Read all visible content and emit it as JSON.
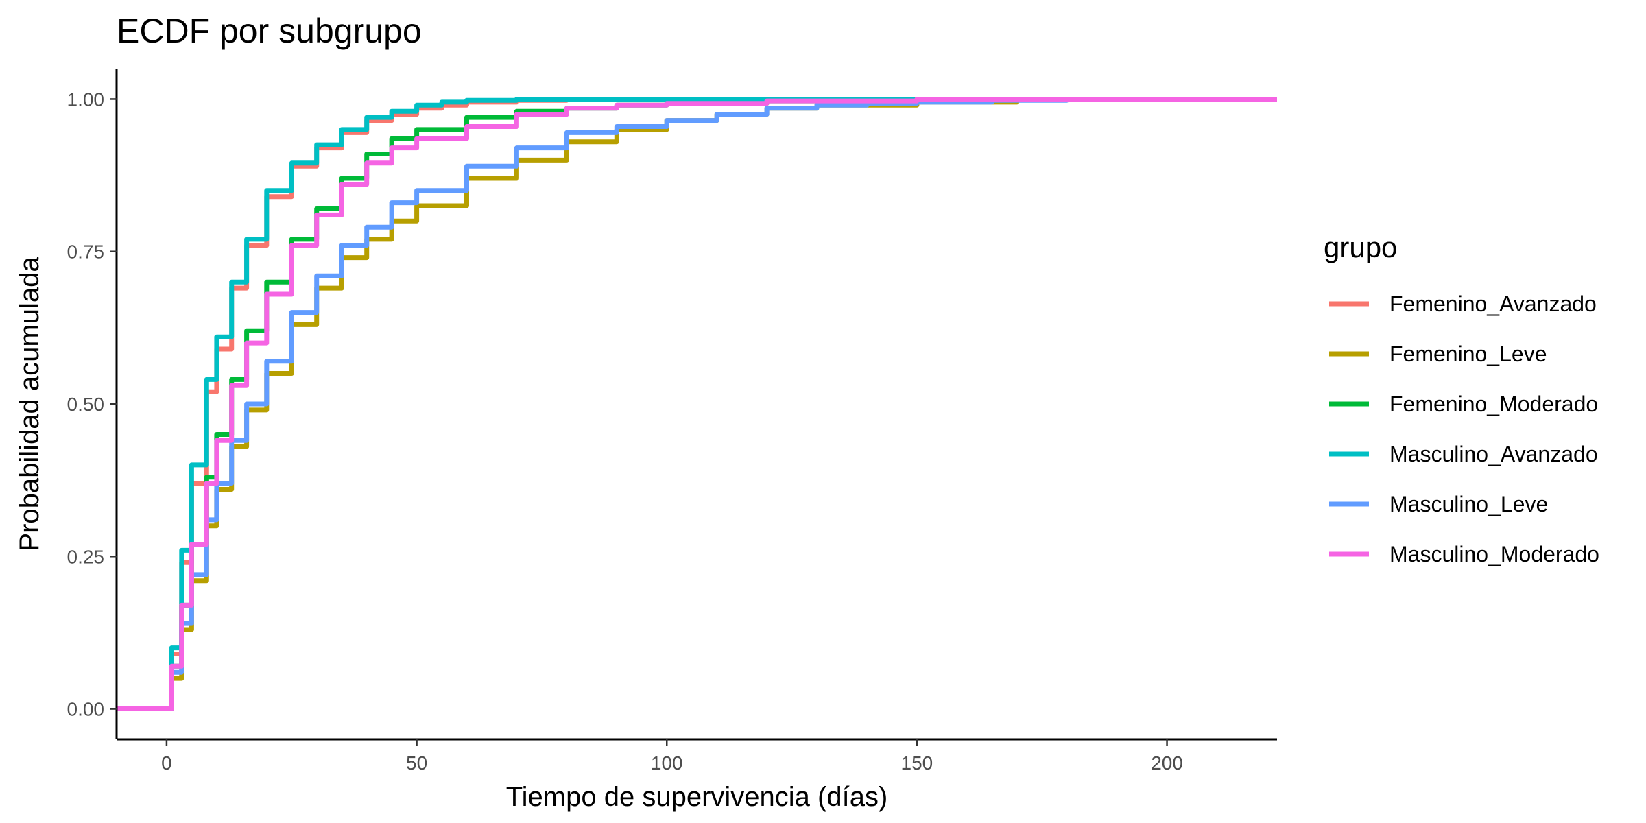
{
  "chart_data": {
    "type": "line",
    "title": "ECDF por subgrupo",
    "xlabel": "Tiempo de supervivencia (días)",
    "ylabel": "Probabilidad acumulada",
    "xlim": [
      -10,
      222
    ],
    "ylim": [
      -0.05,
      1.05
    ],
    "x_ticks": [
      0,
      50,
      100,
      150,
      200
    ],
    "x_tick_labels": [
      "0",
      "50",
      "100",
      "150",
      "200"
    ],
    "y_ticks": [
      0,
      0.25,
      0.5,
      0.75,
      1
    ],
    "y_tick_labels": [
      "0.00",
      "0.25",
      "0.50",
      "0.75",
      "1.00"
    ],
    "grid": false,
    "legend": {
      "title": "grupo",
      "position": "right"
    },
    "series": [
      {
        "name": "Femenino_Avanzado",
        "color": "#F8766D",
        "points": [
          [
            -10,
            0
          ],
          [
            1,
            0
          ],
          [
            1,
            0.09
          ],
          [
            3,
            0.24
          ],
          [
            5,
            0.37
          ],
          [
            8,
            0.52
          ],
          [
            10,
            0.59
          ],
          [
            13,
            0.69
          ],
          [
            16,
            0.76
          ],
          [
            20,
            0.84
          ],
          [
            25,
            0.89
          ],
          [
            30,
            0.92
          ],
          [
            35,
            0.945
          ],
          [
            40,
            0.965
          ],
          [
            45,
            0.975
          ],
          [
            50,
            0.985
          ],
          [
            55,
            0.99
          ],
          [
            60,
            0.995
          ],
          [
            70,
            0.998
          ],
          [
            80,
            1
          ],
          [
            222,
            1
          ]
        ]
      },
      {
        "name": "Femenino_Leve",
        "color": "#B79F00",
        "points": [
          [
            -10,
            0
          ],
          [
            1,
            0
          ],
          [
            1,
            0.05
          ],
          [
            3,
            0.13
          ],
          [
            5,
            0.21
          ],
          [
            8,
            0.3
          ],
          [
            10,
            0.36
          ],
          [
            13,
            0.43
          ],
          [
            16,
            0.49
          ],
          [
            20,
            0.55
          ],
          [
            25,
            0.63
          ],
          [
            30,
            0.69
          ],
          [
            35,
            0.74
          ],
          [
            40,
            0.77
          ],
          [
            45,
            0.8
          ],
          [
            50,
            0.825
          ],
          [
            60,
            0.87
          ],
          [
            70,
            0.9
          ],
          [
            80,
            0.93
          ],
          [
            90,
            0.95
          ],
          [
            100,
            0.965
          ],
          [
            110,
            0.975
          ],
          [
            120,
            0.985
          ],
          [
            130,
            0.99
          ],
          [
            150,
            0.995
          ],
          [
            170,
            0.999
          ],
          [
            180,
            1
          ],
          [
            222,
            1
          ]
        ]
      },
      {
        "name": "Femenino_Moderado",
        "color": "#00BA38",
        "points": [
          [
            -10,
            0
          ],
          [
            1,
            0
          ],
          [
            1,
            0.07
          ],
          [
            3,
            0.17
          ],
          [
            5,
            0.27
          ],
          [
            8,
            0.38
          ],
          [
            10,
            0.45
          ],
          [
            13,
            0.54
          ],
          [
            16,
            0.62
          ],
          [
            20,
            0.7
          ],
          [
            25,
            0.77
          ],
          [
            30,
            0.82
          ],
          [
            35,
            0.87
          ],
          [
            40,
            0.91
          ],
          [
            45,
            0.935
          ],
          [
            50,
            0.95
          ],
          [
            60,
            0.97
          ],
          [
            70,
            0.98
          ],
          [
            80,
            0.985
          ],
          [
            90,
            0.99
          ],
          [
            100,
            0.993
          ],
          [
            120,
            0.997
          ],
          [
            150,
            1
          ],
          [
            222,
            1
          ]
        ]
      },
      {
        "name": "Masculino_Avanzado",
        "color": "#00BFC4",
        "points": [
          [
            -10,
            0
          ],
          [
            1,
            0
          ],
          [
            1,
            0.1
          ],
          [
            3,
            0.26
          ],
          [
            5,
            0.4
          ],
          [
            8,
            0.54
          ],
          [
            10,
            0.61
          ],
          [
            13,
            0.7
          ],
          [
            16,
            0.77
          ],
          [
            20,
            0.85
          ],
          [
            25,
            0.895
          ],
          [
            30,
            0.925
          ],
          [
            35,
            0.95
          ],
          [
            40,
            0.97
          ],
          [
            45,
            0.98
          ],
          [
            50,
            0.99
          ],
          [
            55,
            0.995
          ],
          [
            60,
            0.998
          ],
          [
            70,
            1
          ],
          [
            222,
            1
          ]
        ]
      },
      {
        "name": "Masculino_Leve",
        "color": "#619CFF",
        "points": [
          [
            -10,
            0
          ],
          [
            1,
            0
          ],
          [
            1,
            0.06
          ],
          [
            3,
            0.14
          ],
          [
            5,
            0.22
          ],
          [
            8,
            0.31
          ],
          [
            10,
            0.37
          ],
          [
            13,
            0.44
          ],
          [
            16,
            0.5
          ],
          [
            20,
            0.57
          ],
          [
            25,
            0.65
          ],
          [
            30,
            0.71
          ],
          [
            35,
            0.76
          ],
          [
            40,
            0.79
          ],
          [
            45,
            0.83
          ],
          [
            50,
            0.85
          ],
          [
            60,
            0.89
          ],
          [
            70,
            0.92
          ],
          [
            80,
            0.945
          ],
          [
            90,
            0.955
          ],
          [
            100,
            0.965
          ],
          [
            110,
            0.975
          ],
          [
            120,
            0.985
          ],
          [
            130,
            0.99
          ],
          [
            140,
            0.993
          ],
          [
            150,
            0.995
          ],
          [
            165,
            0.998
          ],
          [
            180,
            1
          ],
          [
            222,
            1
          ]
        ]
      },
      {
        "name": "Masculino_Moderado",
        "color": "#F564E3",
        "points": [
          [
            -10,
            0
          ],
          [
            1,
            0
          ],
          [
            1,
            0.07
          ],
          [
            3,
            0.17
          ],
          [
            5,
            0.27
          ],
          [
            8,
            0.37
          ],
          [
            10,
            0.44
          ],
          [
            13,
            0.53
          ],
          [
            16,
            0.6
          ],
          [
            20,
            0.68
          ],
          [
            25,
            0.76
          ],
          [
            30,
            0.81
          ],
          [
            35,
            0.86
          ],
          [
            40,
            0.895
          ],
          [
            45,
            0.92
          ],
          [
            50,
            0.935
          ],
          [
            60,
            0.955
          ],
          [
            70,
            0.975
          ],
          [
            80,
            0.985
          ],
          [
            90,
            0.99
          ],
          [
            100,
            0.993
          ],
          [
            120,
            0.997
          ],
          [
            150,
            1
          ],
          [
            222,
            1
          ]
        ]
      }
    ]
  }
}
